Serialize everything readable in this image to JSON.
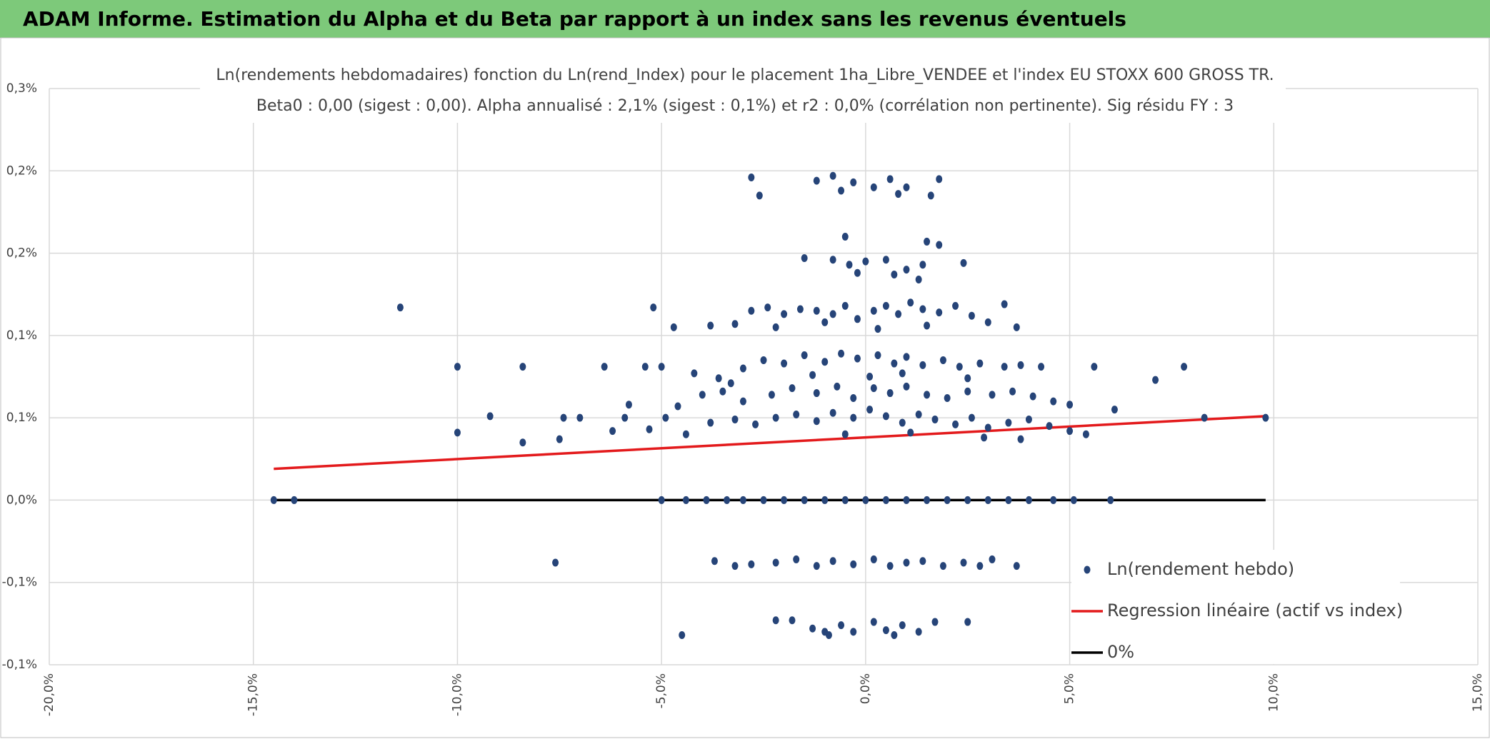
{
  "header": "ADAM Informe. Estimation du Alpha et du Beta par rapport à un index sans les revenus éventuels",
  "chart_data": {
    "type": "scatter",
    "title": "Ln(rendements hebdomadaires) fonction du Ln(rend_Index) pour le placement 1ha_Libre_VENDEE et l'index EU STOXX 600 GROSS TR.",
    "subtitle": "Beta0 : 0,00 (sigest : 0,00). Alpha annualisé : 2,1% (sigest : 0,1%) et r2 : 0,0% (corrélation non pertinente). Sig résidu FY : 3",
    "xlim": [
      -20,
      15
    ],
    "xticks": [
      {
        "value": -20,
        "label": "-20,0%"
      },
      {
        "value": -15,
        "label": "-15,0%"
      },
      {
        "value": -10,
        "label": "-10,0%"
      },
      {
        "value": -5,
        "label": "-5,0%"
      },
      {
        "value": 0,
        "label": "0,0%"
      },
      {
        "value": 5,
        "label": "5,0%"
      },
      {
        "value": 10,
        "label": "10,0%"
      },
      {
        "value": 15,
        "label": "15,0%"
      }
    ],
    "ylim": [
      -0.1,
      0.25
    ],
    "yticks": [
      {
        "value": -0.1,
        "label": "-0,1%"
      },
      {
        "value": -0.05,
        "label": "-0,1%"
      },
      {
        "value": 0,
        "label": "0,0%"
      },
      {
        "value": 0.05,
        "label": "0,1%"
      },
      {
        "value": 0.1,
        "label": "0,1%"
      },
      {
        "value": 0.15,
        "label": "0,2%"
      },
      {
        "value": 0.2,
        "label": "0,2%"
      },
      {
        "value": 0.25,
        "label": "0,3%"
      }
    ],
    "grid": true,
    "legend": "right",
    "series": [
      {
        "name": "Ln(rendement hebdo)",
        "type": "scatter",
        "color": "#264478",
        "x": [
          -11.4,
          -10,
          -10,
          -9.2,
          -8.4,
          -8.4,
          -7.6,
          -7.5,
          -7.4,
          -7.0,
          -6.4,
          -6.2,
          -5.9,
          -5.8,
          -5.4,
          -5.2,
          -5.0,
          -4.7,
          -4.5,
          -14.5,
          -14,
          5.6,
          6.1,
          7.1,
          7.8,
          8.3,
          9.8,
          6.0,
          -2.8,
          -2.6,
          -1.2,
          -0.8,
          -0.6,
          -0.3,
          0.2,
          0.6,
          0.8,
          1.0,
          1.8,
          1.6,
          -0.5,
          1.8,
          1.5,
          -1.5,
          -0.8,
          -0.4,
          0,
          0.5,
          1.0,
          1.4,
          2.4,
          -0.2,
          0.7,
          1.3,
          -3.8,
          -3.2,
          -2.8,
          -2.4,
          -2,
          -1.6,
          -1.2,
          -0.8,
          -0.5,
          -0.2,
          0.2,
          0.5,
          0.8,
          1.1,
          1.4,
          1.8,
          2.2,
          2.6,
          3.0,
          3.4,
          3.7,
          -2.2,
          -1.0,
          0.3,
          1.5,
          -4.2,
          -3.6,
          -3.0,
          -2.5,
          -2.0,
          -1.5,
          -1.0,
          -0.6,
          -0.2,
          0.3,
          0.7,
          1.0,
          1.4,
          1.9,
          2.3,
          2.8,
          3.4,
          3.8,
          4.3,
          -1.3,
          0.1,
          0.9,
          2.5,
          -3.3,
          -4,
          -3.5,
          -3,
          -2.3,
          -1.8,
          -1.2,
          -0.7,
          -0.3,
          0.2,
          0.6,
          1.0,
          1.5,
          2.0,
          2.5,
          3.1,
          3.6,
          4.1,
          4.6,
          5.0,
          -4.6,
          -4.4,
          -3.8,
          -3.2,
          -2.7,
          -2.2,
          -1.7,
          -1.2,
          -0.8,
          -0.3,
          0.1,
          0.5,
          0.9,
          1.3,
          1.7,
          2.2,
          2.6,
          3.0,
          3.5,
          4.0,
          4.5,
          5.0,
          5.4,
          -4.9,
          -5.3,
          -0.5,
          1.1,
          2.9,
          3.8,
          -5,
          -4.4,
          -3.9,
          -3.4,
          -3,
          -2.5,
          -2,
          -1.5,
          -1,
          -0.5,
          0,
          0.5,
          1,
          1.5,
          2,
          2.5,
          3,
          3.5,
          4,
          4.6,
          5.1,
          -3.7,
          -3.2,
          -2.8,
          -2.2,
          -1.7,
          -1.2,
          -0.8,
          -0.3,
          0.2,
          0.6,
          1.0,
          1.4,
          1.9,
          2.4,
          2.8,
          3.1,
          3.7,
          -2.2,
          -1.8,
          -1.3,
          -1,
          -0.6,
          -0.3,
          0.2,
          0.5,
          0.9,
          1.3,
          1.7,
          2.5,
          -0.9,
          0.7
        ],
        "y": [
          0.117,
          0.081,
          0.041,
          0.051,
          0.081,
          0.035,
          -0.038,
          0.037,
          0.05,
          0.05,
          0.081,
          0.042,
          0.05,
          0.058,
          0.081,
          0.117,
          0.081,
          0.105,
          -0.082,
          0,
          0,
          0.081,
          0.055,
          0.073,
          0.081,
          0.05,
          0.05,
          0,
          0.196,
          0.185,
          0.194,
          0.197,
          0.188,
          0.193,
          0.19,
          0.195,
          0.186,
          0.19,
          0.195,
          0.185,
          0.16,
          0.155,
          0.157,
          0.147,
          0.146,
          0.143,
          0.145,
          0.146,
          0.14,
          0.143,
          0.144,
          0.138,
          0.137,
          0.134,
          0.106,
          0.107,
          0.115,
          0.117,
          0.113,
          0.116,
          0.115,
          0.113,
          0.118,
          0.11,
          0.115,
          0.118,
          0.113,
          0.12,
          0.116,
          0.114,
          0.118,
          0.112,
          0.108,
          0.119,
          0.105,
          0.105,
          0.108,
          0.104,
          0.106,
          0.077,
          0.074,
          0.08,
          0.085,
          0.083,
          0.088,
          0.084,
          0.089,
          0.086,
          0.088,
          0.083,
          0.087,
          0.082,
          0.085,
          0.081,
          0.083,
          0.081,
          0.082,
          0.081,
          0.076,
          0.075,
          0.077,
          0.074,
          0.071,
          0.064,
          0.066,
          0.06,
          0.064,
          0.068,
          0.065,
          0.069,
          0.062,
          0.068,
          0.065,
          0.069,
          0.064,
          0.062,
          0.066,
          0.064,
          0.066,
          0.063,
          0.06,
          0.058,
          0.057,
          0.04,
          0.047,
          0.049,
          0.046,
          0.05,
          0.052,
          0.048,
          0.053,
          0.05,
          0.055,
          0.051,
          0.047,
          0.052,
          0.049,
          0.046,
          0.05,
          0.044,
          0.047,
          0.049,
          0.045,
          0.042,
          0.04,
          0.05,
          0.043,
          0.04,
          0.041,
          0.038,
          0.037,
          0,
          0,
          0,
          0,
          0,
          0,
          0,
          0,
          0,
          0,
          0,
          0,
          0,
          0,
          0,
          0,
          0,
          0,
          0,
          0,
          0,
          -0.037,
          -0.04,
          -0.039,
          -0.038,
          -0.036,
          -0.04,
          -0.037,
          -0.039,
          -0.036,
          -0.04,
          -0.038,
          -0.037,
          -0.04,
          -0.038,
          -0.04,
          -0.036,
          -0.04,
          -0.073,
          -0.073,
          -0.078,
          -0.08,
          -0.076,
          -0.08,
          -0.074,
          -0.079,
          -0.076,
          -0.08,
          -0.074,
          -0.074,
          -0.082,
          -0.082
        ]
      },
      {
        "name": "Regression linéaire (actif vs index)",
        "type": "line",
        "color": "#e31a1c",
        "x": [
          -14.5,
          9.8
        ],
        "y": [
          0.019,
          0.051
        ]
      },
      {
        "name": "0%",
        "type": "line",
        "color": "#000000",
        "x": [
          -14.5,
          9.8
        ],
        "y": [
          0,
          0
        ]
      }
    ]
  }
}
